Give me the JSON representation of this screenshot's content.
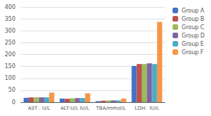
{
  "chart_data": {
    "type": "bar",
    "categories": [
      "AST : U/L",
      "ALT-U/L IU/L",
      "TBA/mmol/L",
      "LDH:  IU/L"
    ],
    "series": [
      {
        "name": "Group A",
        "color": "#4472c4",
        "values": [
          18,
          15,
          4,
          152
        ]
      },
      {
        "name": "Group B",
        "color": "#c0504d",
        "values": [
          20,
          14,
          6,
          160
        ]
      },
      {
        "name": "Group C",
        "color": "#9bbb59",
        "values": [
          20,
          16,
          7,
          160
        ]
      },
      {
        "name": "Group D",
        "color": "#8064a2",
        "values": [
          20,
          17,
          7,
          163
        ]
      },
      {
        "name": "Group E",
        "color": "#4bacc6",
        "values": [
          20,
          17,
          7,
          160
        ]
      },
      {
        "name": "Group F",
        "color": "#f79646",
        "values": [
          40,
          37,
          15,
          337
        ]
      }
    ],
    "ylim": [
      0,
      400
    ],
    "yticks": [
      0,
      50,
      100,
      150,
      200,
      250,
      300,
      350,
      400
    ],
    "grid": true,
    "legend": "upper right"
  }
}
